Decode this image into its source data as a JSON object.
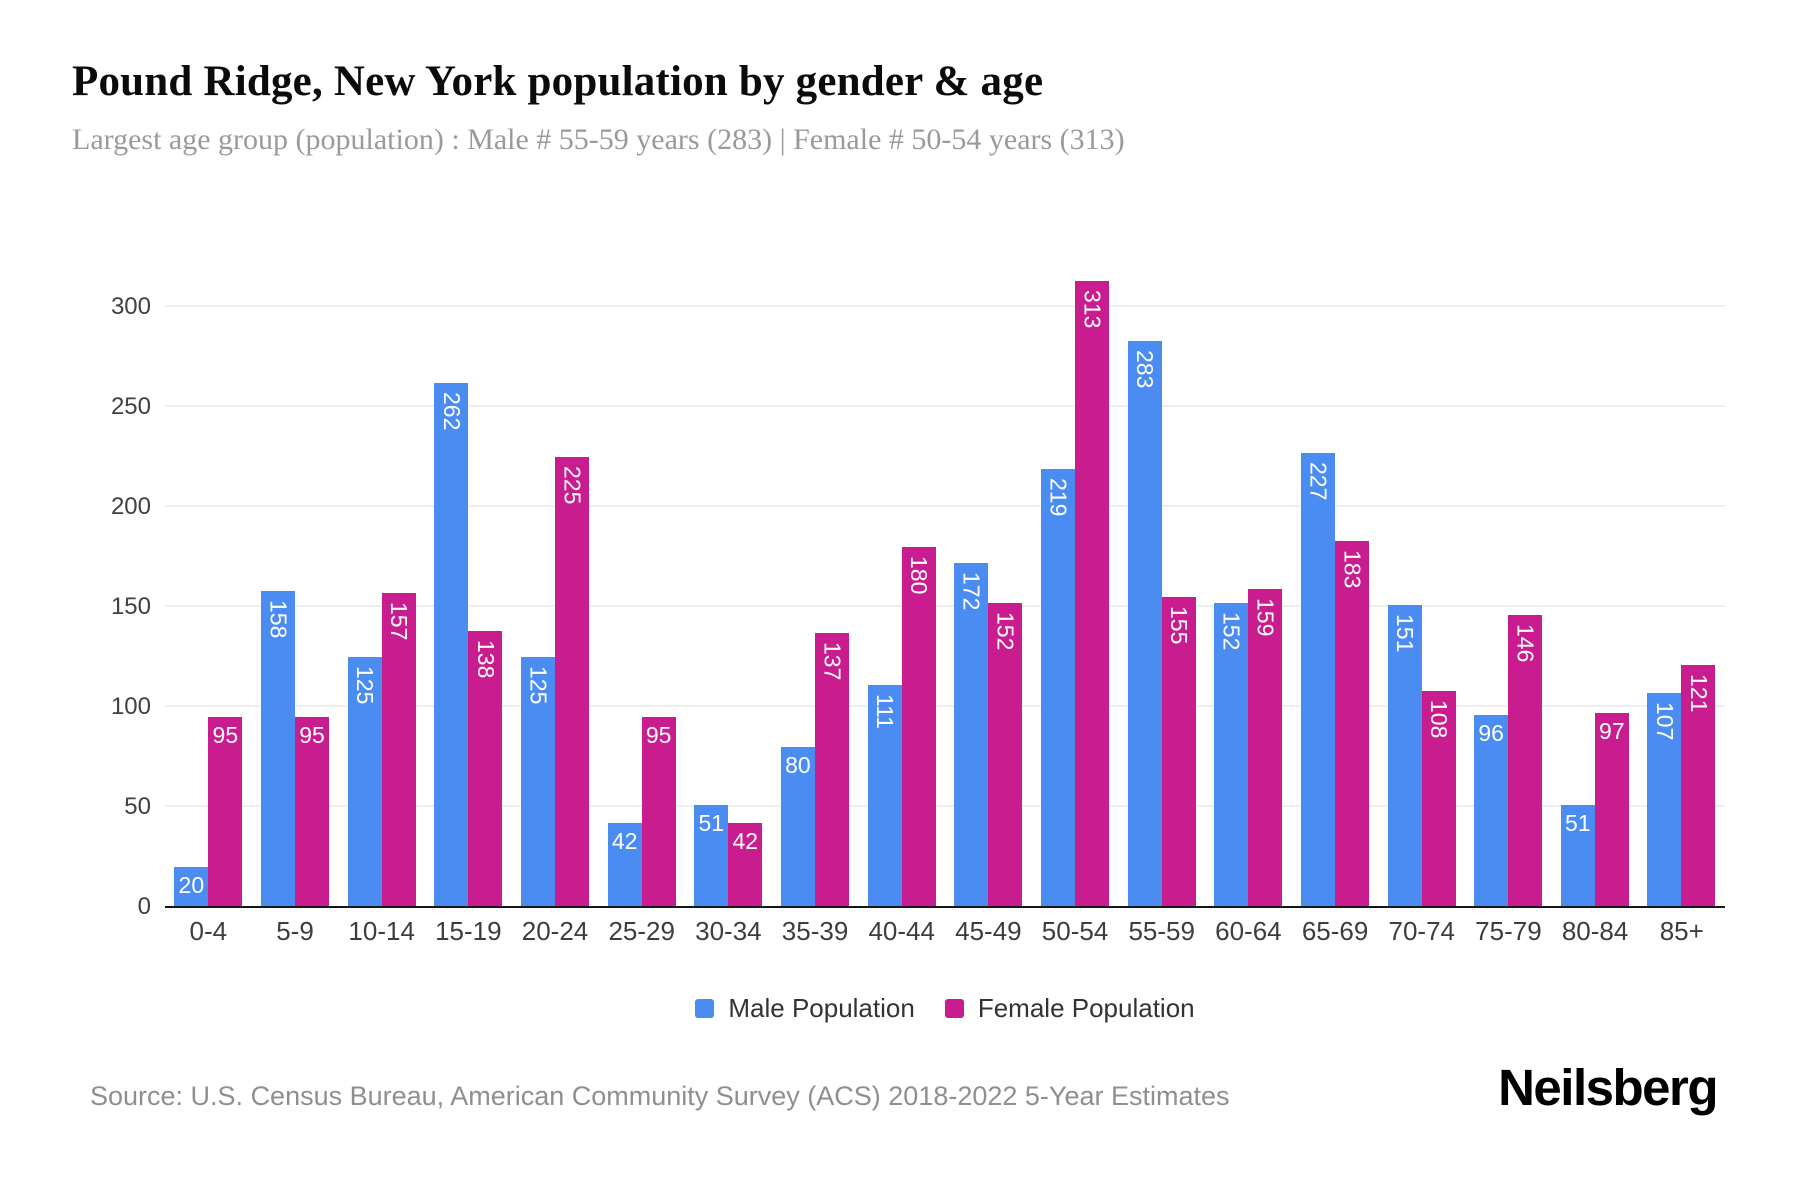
{
  "page": {
    "title": "Pound Ridge, New York population by gender & age",
    "subtitle": "Largest age group (population) : Male # 55-59 years (283) | Female # 50-54 years (313)",
    "source": "Source: U.S. Census Bureau, American Community Survey (ACS) 2018-2022 5-Year Estimates",
    "brand": "Neilsberg"
  },
  "chart_data": {
    "type": "bar",
    "title": "Pound Ridge, New York population by gender & age",
    "categories": [
      "0-4",
      "5-9",
      "10-14",
      "15-19",
      "20-24",
      "25-29",
      "30-34",
      "35-39",
      "40-44",
      "45-49",
      "50-54",
      "55-59",
      "60-64",
      "65-69",
      "70-74",
      "75-79",
      "80-84",
      "85+"
    ],
    "series": [
      {
        "name": "Male Population",
        "color": "#4A8CF2",
        "values": [
          20,
          158,
          125,
          262,
          125,
          42,
          51,
          80,
          111,
          172,
          219,
          283,
          152,
          227,
          151,
          96,
          51,
          107
        ]
      },
      {
        "name": "Female Population",
        "color": "#C91D8F",
        "values": [
          95,
          95,
          157,
          138,
          225,
          95,
          42,
          137,
          180,
          152,
          313,
          155,
          159,
          183,
          108,
          146,
          97,
          121
        ]
      }
    ],
    "xlabel": "",
    "ylabel": "",
    "ylim": [
      0,
      300
    ],
    "yticks": [
      0,
      50,
      100,
      150,
      200,
      250,
      300
    ],
    "grid": "horizontal-only",
    "gridline_color": "#efefef",
    "bar_value_label_color": "#ffffff",
    "legend_position": "bottom"
  }
}
